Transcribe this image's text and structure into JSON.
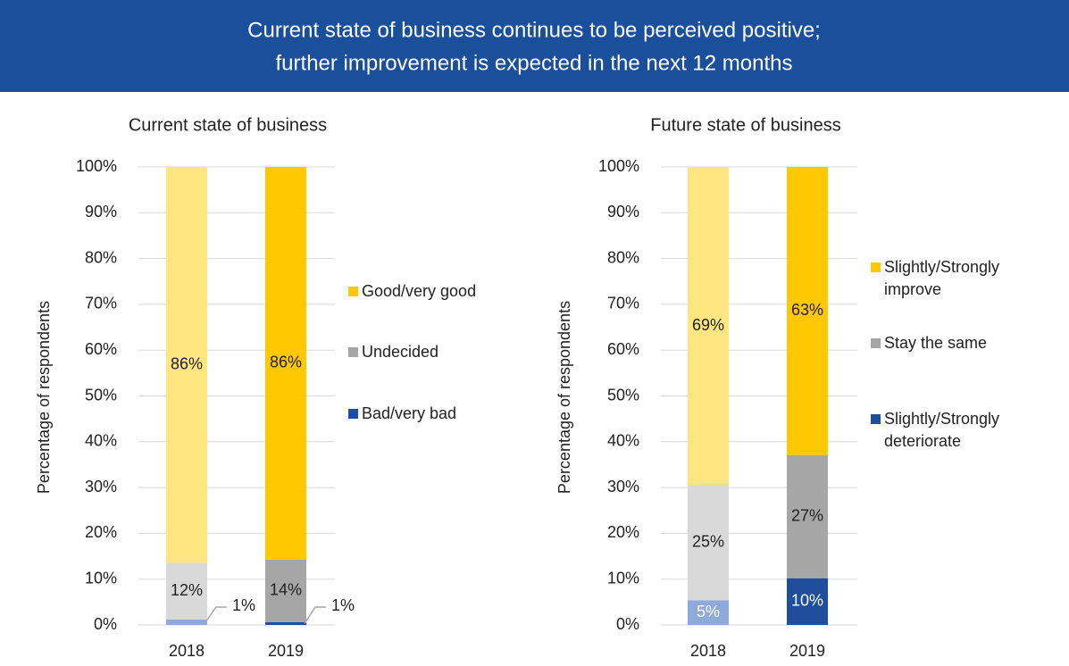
{
  "header": {
    "title": [
      "Current state of business continues to be perceived positive;",
      "further improvement is expected in the next 12 months"
    ]
  },
  "chart_data": [
    {
      "type": "bar",
      "stacked": true,
      "title": "Current state of business",
      "ylabel": "Percentage of respondents",
      "categories": [
        "2018",
        "2019"
      ],
      "series": [
        {
          "name": "Bad/very bad",
          "colors": [
            "#8eaadb",
            "#1f4e9c"
          ],
          "values": [
            1.2,
            0.6
          ],
          "value_labels": [
            "1%",
            "1%"
          ]
        },
        {
          "name": "Undecided",
          "colors": [
            "#d9d9d9",
            "#a6a6a6"
          ],
          "values": [
            12.4,
            13.7
          ],
          "value_labels": [
            "12%",
            "14%"
          ]
        },
        {
          "name": "Good/very good",
          "colors": [
            "#ffe680",
            "#ffc800"
          ],
          "values": [
            86.4,
            85.7
          ],
          "value_labels": [
            "86%",
            "86%"
          ]
        }
      ],
      "ylim": [
        0,
        100
      ],
      "yticks": [
        {
          "value": 0,
          "label": "0%"
        },
        {
          "value": 10,
          "label": "10%"
        },
        {
          "value": 20,
          "label": "20%"
        },
        {
          "value": 30,
          "label": "30%"
        },
        {
          "value": 40,
          "label": "40%"
        },
        {
          "value": 50,
          "label": "50%"
        },
        {
          "value": 60,
          "label": "60%"
        },
        {
          "value": 70,
          "label": "70%"
        },
        {
          "value": 80,
          "label": "80%"
        },
        {
          "value": 90,
          "label": "90%"
        },
        {
          "value": 100,
          "label": "100%"
        }
      ],
      "grid": true,
      "legend": "right"
    },
    {
      "type": "bar",
      "stacked": true,
      "title": "Future state of business",
      "ylabel": "Percentage of respondents",
      "categories": [
        "2018",
        "2019"
      ],
      "series": [
        {
          "name": "Slightly/Strongly deteriorate",
          "colors": [
            "#8eaadb",
            "#1f4e9c"
          ],
          "values": [
            5.4,
            10.2
          ],
          "value_labels": [
            "5%",
            "10%"
          ]
        },
        {
          "name": "Stay the same",
          "colors": [
            "#d9d9d9",
            "#a6a6a6"
          ],
          "values": [
            25.2,
            26.9
          ],
          "value_labels": [
            "25%",
            "27%"
          ]
        },
        {
          "name": "Slightly/Strongly improve",
          "colors": [
            "#ffe680",
            "#ffc800"
          ],
          "values": [
            69.4,
            62.9
          ],
          "value_labels": [
            "69%",
            "63%"
          ]
        }
      ],
      "ylim": [
        0,
        100
      ],
      "yticks": [
        {
          "value": 0,
          "label": "0%"
        },
        {
          "value": 10,
          "label": "10%"
        },
        {
          "value": 20,
          "label": "20%"
        },
        {
          "value": 30,
          "label": "30%"
        },
        {
          "value": 40,
          "label": "40%"
        },
        {
          "value": 50,
          "label": "50%"
        },
        {
          "value": 60,
          "label": "60%"
        },
        {
          "value": 70,
          "label": "70%"
        },
        {
          "value": 80,
          "label": "80%"
        },
        {
          "value": 90,
          "label": "90%"
        },
        {
          "value": 100,
          "label": "100%"
        }
      ],
      "grid": true,
      "legend": "right"
    }
  ]
}
